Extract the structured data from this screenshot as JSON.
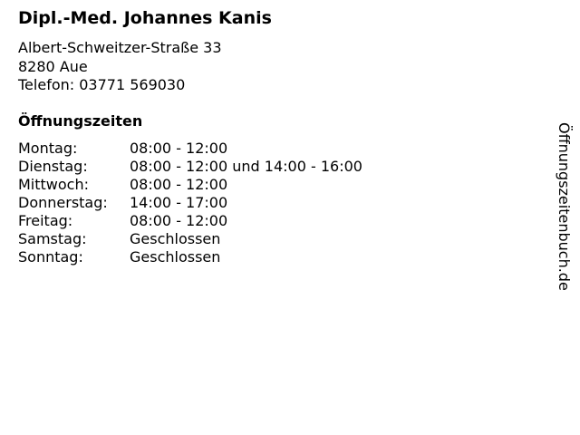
{
  "name": "Dipl.-Med. Johannes Kanis",
  "address": {
    "street": "Albert-Schweitzer-Straße 33",
    "city": "8280 Aue",
    "phone": "Telefon: 03771 569030"
  },
  "hours_heading": "Öffnungszeiten",
  "hours": [
    {
      "day": "Montag:",
      "time": "08:00 - 12:00"
    },
    {
      "day": "Dienstag:",
      "time": "08:00 - 12:00 und 14:00 - 16:00"
    },
    {
      "day": "Mittwoch:",
      "time": "08:00 - 12:00"
    },
    {
      "day": "Donnerstag:",
      "time": "14:00 - 17:00"
    },
    {
      "day": "Freitag:",
      "time": "08:00 - 12:00"
    },
    {
      "day": "Samstag:",
      "time": "Geschlossen"
    },
    {
      "day": "Sonntag:",
      "time": "Geschlossen"
    }
  ],
  "watermark": "Öffnungszeitenbuch.de"
}
